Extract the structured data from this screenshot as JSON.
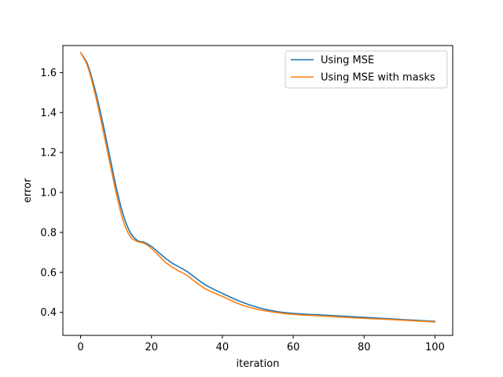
{
  "chart_data": {
    "type": "line",
    "title": "",
    "xlabel": "iteration",
    "ylabel": "error",
    "xlim": [
      -5,
      105
    ],
    "ylim": [
      0.285,
      1.735
    ],
    "xticks": [
      0,
      20,
      40,
      60,
      80,
      100
    ],
    "yticks": [
      0.4,
      0.6,
      0.8,
      1.0,
      1.2,
      1.4,
      1.6
    ],
    "grid": false,
    "legend_position": "top-right",
    "series": [
      {
        "name": "Using MSE",
        "color": "#1f77b4",
        "x": [
          0,
          2,
          4,
          6,
          8,
          10,
          12,
          14,
          16,
          18,
          20,
          22,
          24,
          26,
          28,
          30,
          35,
          40,
          45,
          50,
          55,
          60,
          70,
          80,
          90,
          100
        ],
        "y": [
          1.7,
          1.64,
          1.52,
          1.37,
          1.2,
          1.03,
          0.89,
          0.8,
          0.76,
          0.75,
          0.73,
          0.7,
          0.67,
          0.645,
          0.625,
          0.605,
          0.54,
          0.495,
          0.455,
          0.425,
          0.405,
          0.395,
          0.385,
          0.375,
          0.365,
          0.355
        ]
      },
      {
        "name": "Using MSE with masks",
        "color": "#ff7f0e",
        "x": [
          0,
          2,
          4,
          6,
          8,
          10,
          12,
          14,
          16,
          18,
          20,
          22,
          24,
          26,
          28,
          30,
          35,
          40,
          45,
          50,
          55,
          60,
          70,
          80,
          90,
          100
        ],
        "y": [
          1.7,
          1.63,
          1.5,
          1.34,
          1.17,
          1.0,
          0.86,
          0.78,
          0.755,
          0.745,
          0.72,
          0.685,
          0.65,
          0.625,
          0.605,
          0.585,
          0.52,
          0.48,
          0.44,
          0.415,
          0.4,
          0.39,
          0.38,
          0.37,
          0.362,
          0.352
        ]
      }
    ]
  }
}
